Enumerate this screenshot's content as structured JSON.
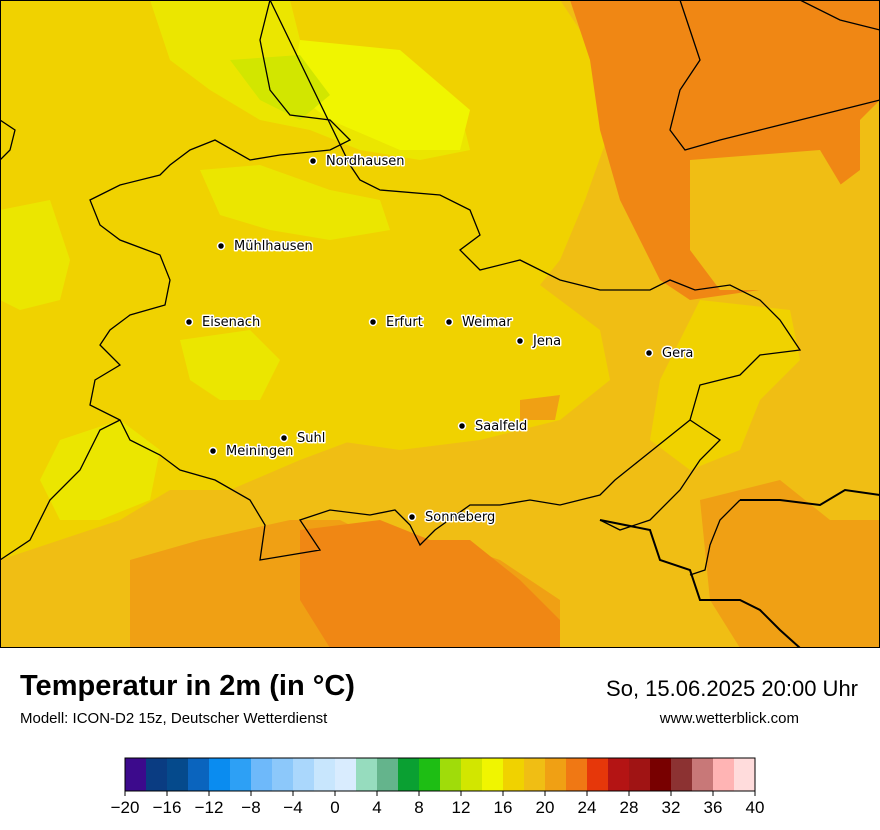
{
  "map": {
    "cities": [
      {
        "name": "Nordhausen"
      },
      {
        "name": "Mühlhausen"
      },
      {
        "name": "Eisenach"
      },
      {
        "name": "Erfurt"
      },
      {
        "name": "Weimar"
      },
      {
        "name": "Jena"
      },
      {
        "name": "Gera"
      },
      {
        "name": "Saalfeld"
      },
      {
        "name": "Suhl"
      },
      {
        "name": "Meiningen"
      },
      {
        "name": "Sonneberg"
      }
    ]
  },
  "footer": {
    "title": "Temperatur in 2m (in °C)",
    "subtitle": "Modell: ICON-D2 15z, Deutscher Wetterdienst",
    "datetime": "So, 15.06.2025 20:00 Uhr",
    "website": "www.wetterblick.com"
  },
  "legend": {
    "ticks": [
      "−20",
      "−16",
      "−12",
      "−8",
      "−4",
      "0",
      "4",
      "8",
      "12",
      "16",
      "20",
      "24",
      "28",
      "32",
      "36",
      "40"
    ],
    "colors": [
      "#3c0a8c",
      "#0a3c82",
      "#054a8c",
      "#0a64be",
      "#0a8cf0",
      "#2da0f5",
      "#6eb9fa",
      "#8cc8fa",
      "#aad7fc",
      "#c8e6fd",
      "#d9ecfe",
      "#96dcbe",
      "#64b48c",
      "#0aa032",
      "#1ebe14",
      "#a0dc0a",
      "#d2e600",
      "#f0f500",
      "#f0d200",
      "#f0be14",
      "#f0a014",
      "#f07814",
      "#e6370a",
      "#b41414",
      "#a01414",
      "#780000",
      "#8c3232",
      "#c87878",
      "#ffb4b4",
      "#ffdcdc"
    ]
  },
  "colors": {
    "temp_15": "#f0f500",
    "temp_16": "#ebe600",
    "temp_17": "#f0d200",
    "temp_18": "#f0be14",
    "temp_20": "#f0a014",
    "temp_22": "#f08714",
    "temp_14": "#d2e600"
  }
}
